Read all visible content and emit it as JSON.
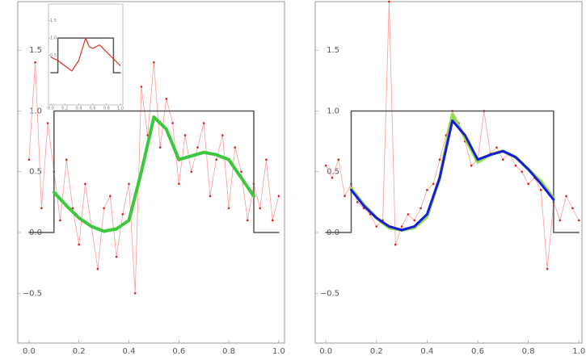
{
  "chart_data": [
    {
      "type": "line",
      "xlim": [
        -0.045,
        1.023
      ],
      "ylim": [
        -0.91,
        1.9
      ],
      "xticks": [
        {
          "value": 0,
          "label": "0.0"
        },
        {
          "value": 0.2,
          "label": "0.2"
        },
        {
          "value": 0.4,
          "label": "0.4"
        },
        {
          "value": 0.6,
          "label": "0.6"
        },
        {
          "value": 0.8,
          "label": "0.8"
        },
        {
          "value": 1,
          "label": "1.0"
        }
      ],
      "yticks": [
        {
          "value": -0.5,
          "label": "−0.5"
        },
        {
          "value": 0,
          "label": "0.0"
        },
        {
          "value": 0.5,
          "label": "0.5"
        },
        {
          "value": 1,
          "label": "1.0"
        },
        {
          "value": 1.5,
          "label": "1.5"
        }
      ],
      "series": [
        {
          "color": "#ff9a9a",
          "markers": true,
          "x": [
            0,
            0.025,
            0.05,
            0.075,
            0.1,
            0.125,
            0.15,
            0.175,
            0.2,
            0.225,
            0.25,
            0.275,
            0.3,
            0.325,
            0.35,
            0.375,
            0.4,
            0.425,
            0.45,
            0.475,
            0.5,
            0.525,
            0.55,
            0.575,
            0.6,
            0.625,
            0.65,
            0.675,
            0.7,
            0.725,
            0.75,
            0.775,
            0.8,
            0.825,
            0.85,
            0.875,
            0.9,
            0.925,
            0.95,
            0.975,
            1
          ],
          "values": [
            0.6,
            1.4,
            0.2,
            0.9,
            0.5,
            0.1,
            0.6,
            0.2,
            -0.1,
            0.4,
            0.05,
            -0.3,
            0.2,
            0.3,
            -0.2,
            0.15,
            0.4,
            -0.5,
            1.2,
            0.8,
            1.4,
            0.7,
            1.1,
            0.9,
            0.4,
            0.8,
            0.5,
            0.7,
            0.9,
            0.3,
            0.6,
            0.8,
            0.2,
            0.7,
            0.5,
            0.1,
            0.4,
            0.2,
            0.6,
            0.1,
            0.3
          ]
        },
        {
          "color": "#555555",
          "x": [
            0,
            0.1,
            0.1,
            0.9,
            0.9,
            1
          ],
          "values": [
            0,
            0,
            1,
            1,
            0,
            0
          ]
        },
        {
          "color": "#3cc83c",
          "width": 4,
          "x": [
            0.1,
            0.15,
            0.2,
            0.25,
            0.3,
            0.35,
            0.4,
            0.45,
            0.5,
            0.55,
            0.6,
            0.65,
            0.7,
            0.75,
            0.8,
            0.85,
            0.9
          ],
          "values": [
            0.33,
            0.22,
            0.12,
            0.05,
            0.01,
            0.03,
            0.1,
            0.5,
            0.95,
            0.85,
            0.6,
            0.63,
            0.66,
            0.64,
            0.6,
            0.45,
            0.3
          ]
        }
      ]
    },
    {
      "type": "line",
      "xlim": [
        -0.042,
        1.012
      ],
      "ylim": [
        -0.91,
        1.9
      ],
      "xticks": [
        {
          "value": 0,
          "label": "0.0"
        },
        {
          "value": 0.2,
          "label": "0.2"
        },
        {
          "value": 0.4,
          "label": "0.4"
        },
        {
          "value": 0.6,
          "label": "0.6"
        },
        {
          "value": 0.8,
          "label": "0.8"
        },
        {
          "value": 1,
          "label": "1.0"
        }
      ],
      "yticks": [
        {
          "value": -0.5,
          "label": "−0.5"
        },
        {
          "value": 0,
          "label": "0.0"
        },
        {
          "value": 0.5,
          "label": "0.5"
        },
        {
          "value": 1,
          "label": "1.0"
        },
        {
          "value": 1.5,
          "label": "1.5"
        }
      ],
      "series": [
        {
          "color": "#ff9a9a",
          "markers": true,
          "x": [
            0,
            0.025,
            0.05,
            0.075,
            0.1,
            0.125,
            0.15,
            0.175,
            0.2,
            0.225,
            0.25,
            0.275,
            0.3,
            0.325,
            0.35,
            0.375,
            0.4,
            0.425,
            0.45,
            0.475,
            0.5,
            0.525,
            0.55,
            0.575,
            0.6,
            0.625,
            0.65,
            0.675,
            0.7,
            0.725,
            0.75,
            0.775,
            0.8,
            0.825,
            0.85,
            0.875,
            0.9,
            0.925,
            0.95,
            0.975,
            1
          ],
          "values": [
            0.55,
            0.45,
            0.6,
            0.3,
            0.4,
            0.25,
            0.2,
            0.15,
            0.05,
            0.1,
            1.9,
            -0.1,
            0.05,
            0.15,
            0.1,
            0.2,
            0.35,
            0.4,
            0.6,
            0.8,
            1.0,
            0.9,
            0.75,
            0.55,
            0.6,
            1.0,
            0.65,
            0.7,
            0.6,
            0.65,
            0.55,
            0.5,
            0.4,
            0.45,
            0.35,
            -0.3,
            0.25,
            0.1,
            0.3,
            0.2,
            0.1
          ]
        },
        {
          "color": "#555555",
          "x": [
            0,
            0.1,
            0.1,
            0.9,
            0.9,
            1
          ],
          "values": [
            0,
            0,
            1,
            1,
            0,
            0
          ]
        },
        {
          "color": "#8ee04a",
          "width": 4,
          "x": [
            0.1,
            0.15,
            0.2,
            0.25,
            0.3,
            0.35,
            0.4,
            0.45,
            0.5,
            0.55,
            0.6,
            0.65,
            0.7,
            0.75,
            0.8,
            0.85,
            0.9
          ],
          "values": [
            0.36,
            0.23,
            0.12,
            0.04,
            0.02,
            0.04,
            0.13,
            0.45,
            0.97,
            0.78,
            0.58,
            0.64,
            0.67,
            0.62,
            0.52,
            0.42,
            0.28
          ]
        },
        {
          "color": "#1a1adc",
          "width": 3,
          "x": [
            0.1,
            0.15,
            0.2,
            0.25,
            0.3,
            0.35,
            0.4,
            0.45,
            0.5,
            0.55,
            0.6,
            0.65,
            0.7,
            0.75,
            0.8,
            0.85,
            0.9
          ],
          "values": [
            0.35,
            0.22,
            0.12,
            0.05,
            0.02,
            0.05,
            0.15,
            0.45,
            0.92,
            0.8,
            0.6,
            0.64,
            0.67,
            0.62,
            0.52,
            0.4,
            0.27
          ]
        }
      ]
    },
    {
      "type": "line",
      "xlim": [
        -0.035,
        1.035
      ],
      "ylim": [
        -0.93,
        1.98
      ],
      "xticks": [
        {
          "value": 0,
          "label": "0.0"
        },
        {
          "value": 0.2,
          "label": "0.2"
        },
        {
          "value": 0.4,
          "label": "0.4"
        },
        {
          "value": 0.6,
          "label": "0.6"
        },
        {
          "value": 0.8,
          "label": "0.8"
        },
        {
          "value": 1,
          "label": "1.0"
        }
      ],
      "yticks": [
        {
          "value": 0.5,
          "label": "0.5"
        },
        {
          "value": 1,
          "label": "1.0"
        },
        {
          "value": 1.5,
          "label": "1.5"
        }
      ],
      "series": [
        {
          "color": "#555555",
          "x": [
            0,
            0.1,
            0.1,
            0.9,
            0.9,
            1
          ],
          "values": [
            0,
            0,
            1,
            1,
            0,
            0
          ]
        },
        {
          "color": "#e03020",
          "width": 1.2,
          "x": [
            0,
            0.1,
            0.2,
            0.3,
            0.4,
            0.5,
            0.55,
            0.6,
            0.7,
            0.8,
            0.9,
            1
          ],
          "values": [
            0.45,
            0.35,
            0.2,
            0.05,
            0.35,
            1.0,
            0.75,
            0.7,
            0.8,
            0.6,
            0.4,
            0.2
          ]
        }
      ]
    }
  ]
}
